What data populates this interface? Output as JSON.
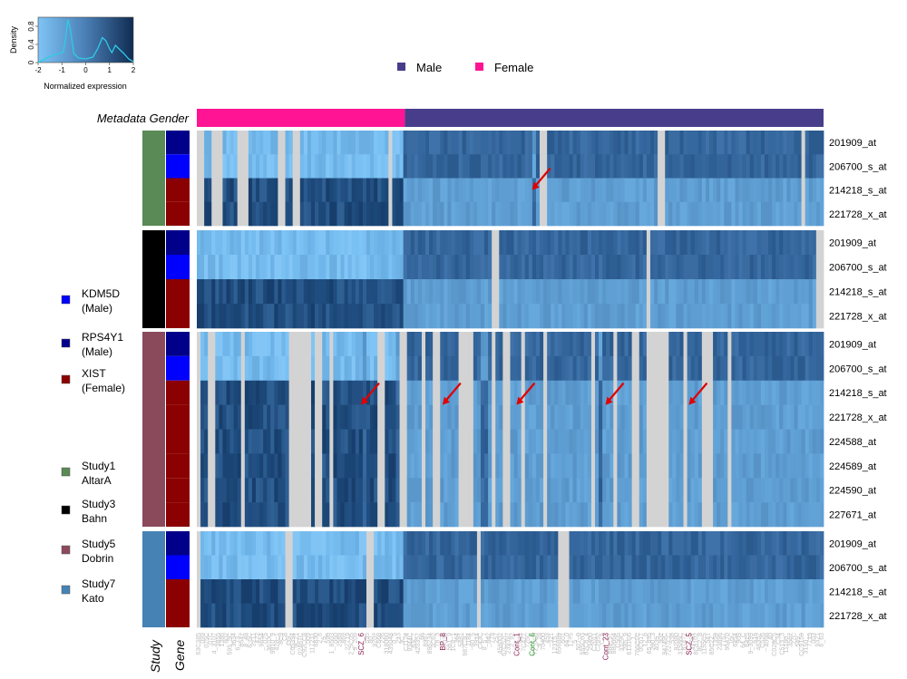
{
  "chart_data": {
    "type": "heatmap",
    "title": "",
    "color_key": {
      "xlabel": "Normalized expression",
      "ylabel": "Density",
      "x_ticks": [
        "-2",
        "-1",
        "0",
        "1",
        "2"
      ],
      "y_ticks": [
        "0",
        "0.4",
        "0.8"
      ],
      "xlim": [
        -2,
        2
      ],
      "ylim": [
        0,
        1.0
      ],
      "density_curve": [
        [
          -2,
          0.0
        ],
        [
          -1.7,
          0.08
        ],
        [
          -1.4,
          0.16
        ],
        [
          -1.1,
          0.2
        ],
        [
          -0.95,
          0.22
        ],
        [
          -0.85,
          0.5
        ],
        [
          -0.75,
          0.95
        ],
        [
          -0.65,
          0.75
        ],
        [
          -0.5,
          0.2
        ],
        [
          -0.3,
          0.1
        ],
        [
          0,
          0.08
        ],
        [
          0.3,
          0.12
        ],
        [
          0.5,
          0.3
        ],
        [
          0.7,
          0.55
        ],
        [
          0.85,
          0.48
        ],
        [
          1.0,
          0.3
        ],
        [
          1.1,
          0.22
        ],
        [
          1.25,
          0.38
        ],
        [
          1.4,
          0.3
        ],
        [
          1.6,
          0.2
        ],
        [
          1.8,
          0.08
        ],
        [
          2.0,
          0.02
        ]
      ],
      "colors": {
        "low": "#7fc4f5",
        "high": "#102c52",
        "curve": "#2ecbe6"
      }
    },
    "top_legend": [
      {
        "label": "Male",
        "color": "#483d8b"
      },
      {
        "label": "Female",
        "color": "#ff1493"
      }
    ],
    "metadata_row_label": "Metadata Gender",
    "gender_split_fraction": 0.332,
    "left_legend": [
      {
        "label": "KDM5D",
        "sub": "(Male)",
        "color": "#0000ff"
      },
      {
        "label": "RPS4Y1",
        "sub": "(Male)",
        "color": "#00008b"
      },
      {
        "label": "XIST",
        "sub": "(Female)",
        "color": "#8b0000"
      },
      {
        "label": "Study1",
        "sub": "AltarA",
        "color": "#5a8a55"
      },
      {
        "label": "Study3",
        "sub": "Bahn",
        "color": "#000000"
      },
      {
        "label": "Study5",
        "sub": "Dobrin",
        "color": "#8b4a5c"
      },
      {
        "label": "Study7",
        "sub": "Kato",
        "color": "#4682b4"
      }
    ],
    "bottom_labels": {
      "study": "Study",
      "gene": "Gene"
    },
    "panels": [
      {
        "study": "Study1 AltarA",
        "study_color": "#5a8a55",
        "rows": [
          {
            "probe": "201909_at",
            "gene_color": "#00008b"
          },
          {
            "probe": "206700_s_at",
            "gene_color": "#0000ff"
          },
          {
            "probe": "214218_s_at",
            "gene_color": "#8b0000"
          },
          {
            "probe": "221728_x_at",
            "gene_color": "#8b0000"
          }
        ],
        "missing_columns": [
          [
            0,
            0.012
          ],
          [
            0.025,
            0.04
          ],
          [
            0.065,
            0.085
          ],
          [
            0.13,
            0.14
          ],
          [
            0.152,
            0.162
          ],
          [
            0.305,
            0.313
          ],
          [
            0.545,
            0.556
          ],
          [
            0.736,
            0.746
          ],
          [
            0.962,
            0.972
          ]
        ],
        "outlier_columns": [
          [
            0.534,
            0.541
          ]
        ]
      },
      {
        "study": "Study3 Bahn",
        "study_color": "#000000",
        "rows": [
          {
            "probe": "201909_at",
            "gene_color": "#00008b"
          },
          {
            "probe": "206700_s_at",
            "gene_color": "#0000ff"
          },
          {
            "probe": "214218_s_at",
            "gene_color": "#8b0000"
          },
          {
            "probe": "221728_x_at",
            "gene_color": "#8b0000"
          }
        ],
        "missing_columns": [
          [
            0.473,
            0.482
          ],
          [
            0.716,
            0.725
          ],
          [
            0.99,
            1.0
          ]
        ],
        "outlier_columns": []
      },
      {
        "study": "Study5 Dobrin",
        "study_color": "#8b4a5c",
        "rows": [
          {
            "probe": "201909_at",
            "gene_color": "#00008b"
          },
          {
            "probe": "206700_s_at",
            "gene_color": "#0000ff"
          },
          {
            "probe": "214218_s_at",
            "gene_color": "#8b0000"
          },
          {
            "probe": "221728_x_at",
            "gene_color": "#8b0000"
          },
          {
            "probe": "224588_at",
            "gene_color": "#8b0000"
          },
          {
            "probe": "224589_at",
            "gene_color": "#8b0000"
          },
          {
            "probe": "224590_at",
            "gene_color": "#8b0000"
          },
          {
            "probe": "227671_at",
            "gene_color": "#8b0000"
          }
        ],
        "missing_columns": [
          [
            0,
            0.006
          ],
          [
            0.02,
            0.03
          ],
          [
            0.068,
            0.078
          ],
          [
            0.15,
            0.18
          ],
          [
            0.19,
            0.198
          ],
          [
            0.21,
            0.22
          ],
          [
            0.29,
            0.3
          ],
          [
            0.323,
            0.333
          ],
          [
            0.357,
            0.363
          ],
          [
            0.376,
            0.386
          ],
          [
            0.418,
            0.444
          ],
          [
            0.47,
            0.478
          ],
          [
            0.49,
            0.498
          ],
          [
            0.515,
            0.522
          ],
          [
            0.552,
            0.56
          ],
          [
            0.627,
            0.635
          ],
          [
            0.666,
            0.672
          ],
          [
            0.696,
            0.705
          ],
          [
            0.72,
            0.752
          ],
          [
            0.776,
            0.785
          ],
          [
            0.805,
            0.825
          ],
          [
            0.845,
            0.855
          ]
        ],
        "outlier_columns": [
          [
            0.262,
            0.27
          ],
          [
            0.318,
            0.323
          ],
          [
            0.453,
            0.462
          ],
          [
            0.64,
            0.648
          ]
        ]
      },
      {
        "study": "Study7 Kato",
        "study_color": "#4682b4",
        "rows": [
          {
            "probe": "201909_at",
            "gene_color": "#00008b"
          },
          {
            "probe": "206700_s_at",
            "gene_color": "#0000ff"
          },
          {
            "probe": "214218_s_at",
            "gene_color": "#8b0000"
          },
          {
            "probe": "221728_x_at",
            "gene_color": "#8b0000"
          }
        ],
        "missing_columns": [
          [
            0,
            0.008
          ],
          [
            0.14,
            0.155
          ],
          [
            0.27,
            0.28
          ],
          [
            0.445,
            0.452
          ],
          [
            0.578,
            0.595
          ]
        ],
        "outlier_columns": []
      }
    ],
    "highlighted_samples": [
      {
        "label": "SCZ_6",
        "color": "#8b2252",
        "panel": 2,
        "position": 0.262
      },
      {
        "label": "BP_8",
        "color": "#8b2252",
        "panel": 2,
        "position": 0.392
      },
      {
        "label": "Cont_1",
        "color": "#8b2252",
        "panel": 2,
        "position": 0.51
      },
      {
        "label": "Cont_6",
        "color": "#228b22",
        "panel": 2,
        "position": 0.535
      },
      {
        "label": "Cont_23",
        "color": "#8b2252",
        "panel": 2,
        "position": 0.652
      },
      {
        "label": "SCZ_5",
        "color": "#8b2252",
        "panel": 2,
        "position": 0.785
      }
    ],
    "arrows": [
      {
        "panel": 0,
        "position": 0.535,
        "row": 2.5
      },
      {
        "panel": 2,
        "position": 0.262,
        "row": 3.0
      },
      {
        "panel": 2,
        "position": 0.392,
        "row": 3.0
      },
      {
        "panel": 2,
        "position": 0.51,
        "row": 3.0
      },
      {
        "panel": 2,
        "position": 0.652,
        "row": 3.0
      },
      {
        "panel": 2,
        "position": 0.785,
        "row": 3.0
      }
    ],
    "sample_label_color": "#bebebe",
    "missing_color": "#d3d3d3",
    "arrow_color": "#e00000"
  }
}
